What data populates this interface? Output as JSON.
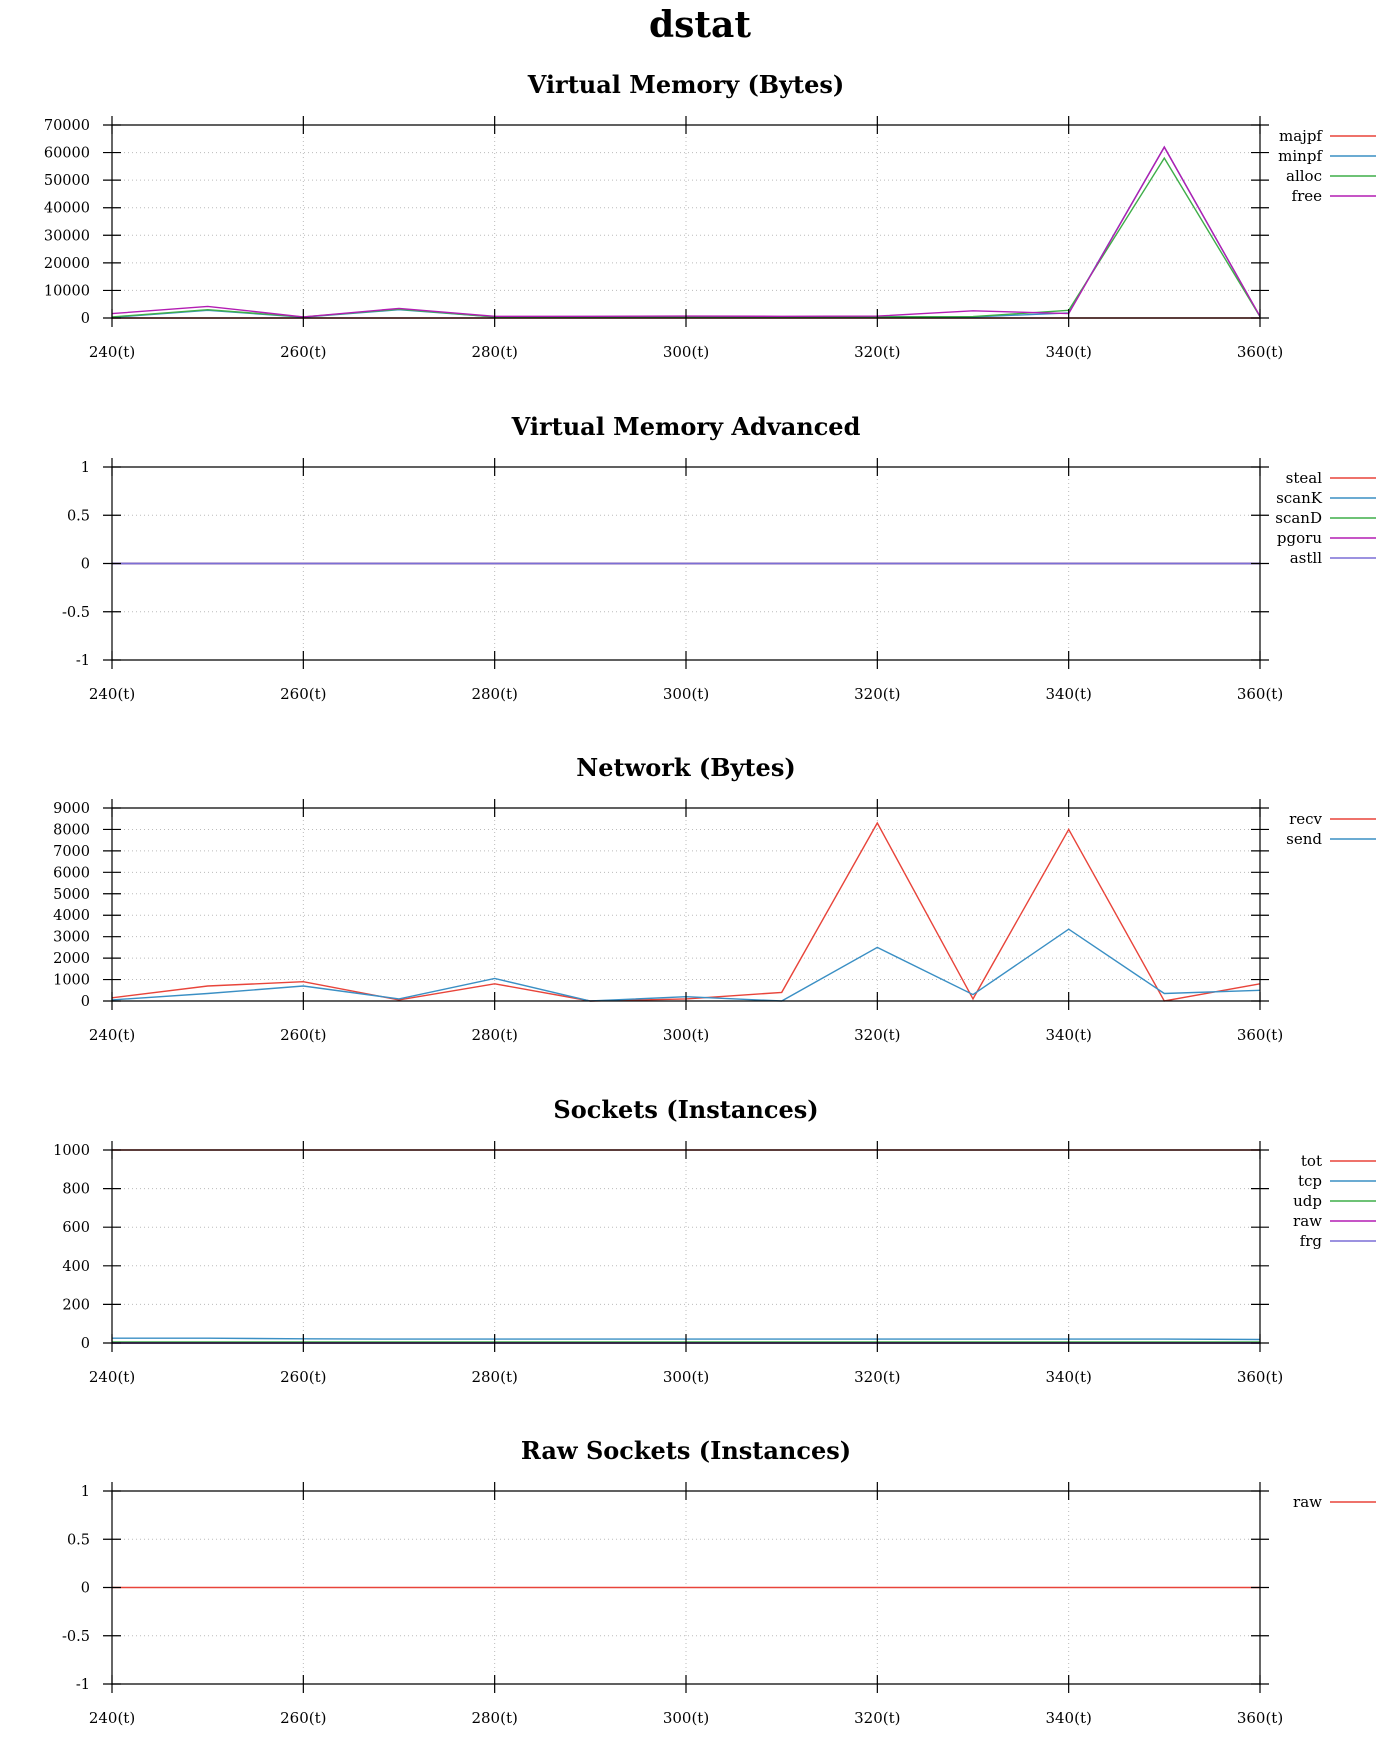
{
  "title": "dstat",
  "chart_data": [
    {
      "type": "line",
      "title": "Virtual Memory (Bytes)",
      "x": [
        240,
        250,
        260,
        270,
        280,
        290,
        300,
        310,
        320,
        330,
        340,
        350,
        360
      ],
      "x_tick_labels": [
        "240(t)",
        "260(t)",
        "280(t)",
        "300(t)",
        "320(t)",
        "340(t)",
        "360(t)"
      ],
      "x_ticks": [
        240,
        260,
        280,
        300,
        320,
        340,
        360
      ],
      "xlim": [
        240,
        360
      ],
      "ylim": [
        0,
        70000
      ],
      "y_ticks": [
        0,
        10000,
        20000,
        30000,
        40000,
        50000,
        60000,
        70000
      ],
      "y_tick_labels": [
        "0",
        "10000",
        "20000",
        "30000",
        "40000",
        "50000",
        "60000",
        "70000"
      ],
      "grid": true,
      "legend": "right",
      "series": [
        {
          "name": "majpf",
          "color": "#e8443a",
          "values": [
            0,
            0,
            0,
            0,
            0,
            0,
            0,
            0,
            0,
            0,
            0,
            0,
            0
          ]
        },
        {
          "name": "minpf",
          "color": "#3a8fc4",
          "values": [
            200,
            2800,
            300,
            3000,
            400,
            500,
            500,
            400,
            500,
            400,
            1800,
            62000,
            500
          ]
        },
        {
          "name": "alloc",
          "color": "#3fae49",
          "values": [
            400,
            3000,
            400,
            3200,
            400,
            400,
            400,
            300,
            400,
            500,
            2800,
            58000,
            500
          ]
        },
        {
          "name": "free",
          "color": "#b31db3",
          "values": [
            1600,
            4200,
            400,
            3500,
            600,
            600,
            700,
            600,
            700,
            2600,
            1600,
            62000,
            600
          ]
        }
      ]
    },
    {
      "type": "line",
      "title": "Virtual Memory Advanced",
      "x": [
        240,
        360
      ],
      "x_tick_labels": [
        "240(t)",
        "260(t)",
        "280(t)",
        "300(t)",
        "320(t)",
        "340(t)",
        "360(t)"
      ],
      "x_ticks": [
        240,
        260,
        280,
        300,
        320,
        340,
        360
      ],
      "xlim": [
        240,
        360
      ],
      "ylim": [
        -1,
        1
      ],
      "y_ticks": [
        -1,
        -0.5,
        0,
        0.5,
        1
      ],
      "y_tick_labels": [
        "-1",
        "-0.5",
        "0",
        "0.5",
        "1"
      ],
      "grid": true,
      "legend": "right",
      "series": [
        {
          "name": "steal",
          "color": "#e8443a",
          "values": [
            0,
            0
          ]
        },
        {
          "name": "scanK",
          "color": "#3a8fc4",
          "values": [
            0,
            0
          ]
        },
        {
          "name": "scanD",
          "color": "#3fae49",
          "values": [
            0,
            0
          ]
        },
        {
          "name": "pgoru",
          "color": "#b31db3",
          "values": [
            0,
            0
          ]
        },
        {
          "name": "astll",
          "color": "#7b6fd6",
          "values": [
            0,
            0
          ]
        }
      ]
    },
    {
      "type": "line",
      "title": "Network (Bytes)",
      "x": [
        240,
        250,
        260,
        270,
        280,
        290,
        300,
        310,
        320,
        330,
        340,
        350,
        360
      ],
      "x_tick_labels": [
        "240(t)",
        "260(t)",
        "280(t)",
        "300(t)",
        "320(t)",
        "340(t)",
        "360(t)"
      ],
      "x_ticks": [
        240,
        260,
        280,
        300,
        320,
        340,
        360
      ],
      "xlim": [
        240,
        360
      ],
      "ylim": [
        0,
        9000
      ],
      "y_ticks": [
        0,
        1000,
        2000,
        3000,
        4000,
        5000,
        6000,
        7000,
        8000,
        9000
      ],
      "y_tick_labels": [
        "0",
        "1000",
        "2000",
        "3000",
        "4000",
        "5000",
        "6000",
        "7000",
        "8000",
        "9000"
      ],
      "grid": true,
      "legend": "right",
      "series": [
        {
          "name": "recv",
          "color": "#e8443a",
          "values": [
            150,
            700,
            900,
            50,
            800,
            0,
            100,
            400,
            8300,
            100,
            8000,
            0,
            800
          ]
        },
        {
          "name": "send",
          "color": "#3a8fc4",
          "values": [
            50,
            350,
            700,
            100,
            1050,
            0,
            200,
            0,
            2500,
            300,
            3350,
            350,
            500
          ]
        }
      ]
    },
    {
      "type": "line",
      "title": "Sockets (Instances)",
      "x": [
        240,
        250,
        260,
        270,
        280,
        290,
        300,
        310,
        320,
        330,
        340,
        350,
        360
      ],
      "x_tick_labels": [
        "240(t)",
        "260(t)",
        "280(t)",
        "300(t)",
        "320(t)",
        "340(t)",
        "360(t)"
      ],
      "x_ticks": [
        240,
        260,
        280,
        300,
        320,
        340,
        360
      ],
      "xlim": [
        240,
        360
      ],
      "ylim": [
        0,
        1000
      ],
      "y_ticks": [
        0,
        200,
        400,
        600,
        800,
        1000
      ],
      "y_tick_labels": [
        "0",
        "200",
        "400",
        "600",
        "800",
        "1000"
      ],
      "grid": true,
      "legend": "right",
      "series": [
        {
          "name": "tot",
          "color": "#e8443a",
          "values": [
            1000,
            1000,
            1000,
            1000,
            1000,
            1000,
            1000,
            1000,
            1000,
            1000,
            1000,
            1000,
            1000
          ]
        },
        {
          "name": "tcp",
          "color": "#3a8fc4",
          "values": [
            25,
            25,
            22,
            20,
            20,
            20,
            20,
            20,
            20,
            20,
            20,
            20,
            18
          ]
        },
        {
          "name": "udp",
          "color": "#3fae49",
          "values": [
            5,
            5,
            5,
            5,
            5,
            5,
            5,
            5,
            5,
            5,
            5,
            5,
            5
          ]
        },
        {
          "name": "raw",
          "color": "#b31db3",
          "values": [
            0,
            0,
            0,
            0,
            0,
            0,
            0,
            0,
            0,
            0,
            0,
            0,
            0
          ]
        },
        {
          "name": "frg",
          "color": "#7b6fd6",
          "values": [
            0,
            0,
            0,
            0,
            0,
            0,
            0,
            0,
            0,
            0,
            0,
            0,
            0
          ]
        }
      ]
    },
    {
      "type": "line",
      "title": "Raw Sockets (Instances)",
      "x": [
        240,
        360
      ],
      "x_tick_labels": [
        "240(t)",
        "260(t)",
        "280(t)",
        "300(t)",
        "320(t)",
        "340(t)",
        "360(t)"
      ],
      "x_ticks": [
        240,
        260,
        280,
        300,
        320,
        340,
        360
      ],
      "xlim": [
        240,
        360
      ],
      "ylim": [
        -1,
        1
      ],
      "y_ticks": [
        -1,
        -0.5,
        0,
        0.5,
        1
      ],
      "y_tick_labels": [
        "-1",
        "-0.5",
        "0",
        "0.5",
        "1"
      ],
      "grid": true,
      "legend": "right",
      "series": [
        {
          "name": "raw",
          "color": "#e8443a",
          "values": [
            0,
            0
          ]
        }
      ]
    }
  ]
}
